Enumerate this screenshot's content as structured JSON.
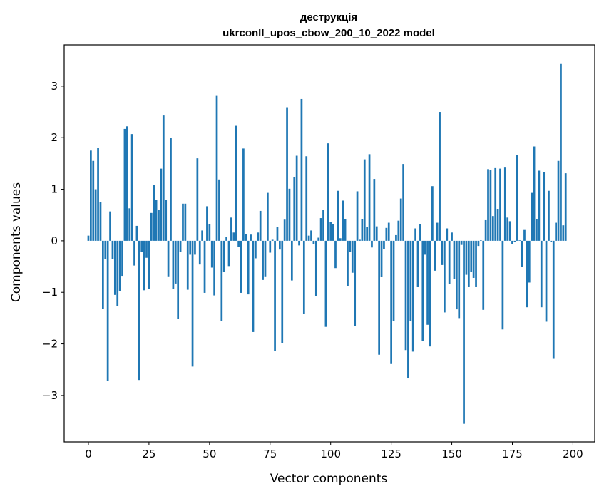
{
  "chart_data": {
    "type": "bar",
    "title": [
      "деструкція",
      "ukrconll_upos_cbow_200_10_2022 model"
    ],
    "xlabel": "Vector components",
    "ylabel": "Components values",
    "xlim": [
      -10,
      209
    ],
    "ylim": [
      -3.9,
      3.8
    ],
    "xticks": [
      0,
      25,
      50,
      75,
      100,
      125,
      150,
      175,
      200
    ],
    "yticks": [
      -3,
      -2,
      -1,
      0,
      1,
      2,
      3
    ],
    "xtick_labels": [
      "0",
      "25",
      "50",
      "75",
      "100",
      "125",
      "150",
      "175",
      "200"
    ],
    "ytick_labels": [
      "−3",
      "−2",
      "−1",
      "0",
      "1",
      "2",
      "3"
    ],
    "bar_color": "#1f77b4",
    "grid": false,
    "legend": "none",
    "values": [
      0.1,
      1.75,
      1.55,
      1.0,
      1.8,
      0.75,
      -1.32,
      -0.35,
      -2.72,
      0.57,
      -0.35,
      -1.05,
      -1.27,
      -0.97,
      -0.68,
      2.17,
      2.22,
      0.63,
      2.07,
      -0.48,
      0.29,
      -2.7,
      -0.22,
      -0.96,
      -0.33,
      -0.93,
      0.54,
      1.08,
      0.79,
      0.6,
      1.4,
      2.43,
      0.79,
      -0.69,
      2.0,
      -0.93,
      -0.83,
      -1.52,
      -0.21,
      0.72,
      0.72,
      -0.95,
      -0.27,
      -2.44,
      -0.27,
      1.6,
      -0.46,
      0.2,
      -1.01,
      0.67,
      0.33,
      -0.52,
      -1.06,
      2.81,
      1.19,
      -1.55,
      -0.6,
      0.07,
      -0.49,
      0.45,
      0.16,
      2.23,
      -0.12,
      -1.01,
      1.79,
      0.13,
      -1.04,
      0.12,
      -1.77,
      -0.34,
      0.16,
      0.58,
      -0.76,
      -0.69,
      0.93,
      -0.23,
      0.02,
      -2.14,
      0.27,
      -0.17,
      -1.99,
      0.41,
      2.59,
      1.01,
      -0.77,
      1.24,
      1.65,
      -0.09,
      2.75,
      -1.42,
      1.64,
      0.1,
      0.2,
      -0.06,
      -1.07,
      0.06,
      0.44,
      0.6,
      -1.67,
      1.89,
      0.36,
      0.33,
      -0.53,
      0.97,
      0.05,
      0.78,
      0.42,
      -0.88,
      -0.21,
      -0.62,
      -1.65,
      0.96,
      0.02,
      0.42,
      1.58,
      0.27,
      1.68,
      -0.13,
      1.2,
      0.28,
      -2.21,
      -0.7,
      -0.16,
      0.25,
      0.35,
      -2.39,
      -1.55,
      0.11,
      0.39,
      0.82,
      1.49,
      -2.12,
      -2.67,
      -1.55,
      -2.15,
      0.24,
      -0.9,
      0.33,
      -1.94,
      -0.27,
      -1.63,
      -2.05,
      1.06,
      -0.58,
      0.35,
      2.5,
      -0.47,
      -1.39,
      0.24,
      -0.84,
      0.16,
      -0.74,
      -1.33,
      -1.5,
      -0.08,
      -3.55,
      -0.66,
      -0.9,
      -0.6,
      -0.72,
      -0.9,
      -0.1,
      0.01,
      -1.34,
      0.4,
      1.39,
      1.38,
      0.48,
      1.41,
      0.62,
      1.4,
      -1.72,
      1.42,
      0.45,
      0.38,
      -0.06,
      -0.02,
      1.67,
      0.01,
      -0.5,
      0.21,
      -1.29,
      -0.81,
      0.93,
      1.83,
      0.42,
      1.36,
      -1.29,
      1.33,
      -1.57,
      0.97,
      -0.02,
      -2.29,
      0.35,
      1.55,
      3.43,
      0.3,
      1.31
    ]
  }
}
